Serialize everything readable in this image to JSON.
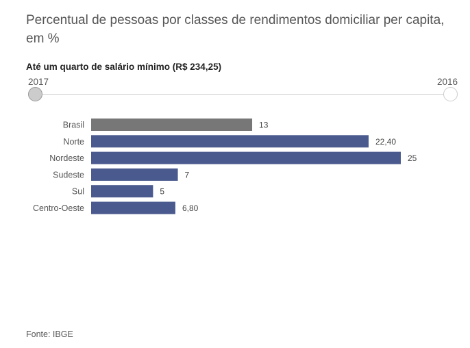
{
  "title": "Percentual de pessoas por classes de rendimentos domiciliar per capita, em %",
  "slider": {
    "subtitle": "Até um quarto de salário mínimo (R$ 234,25)",
    "left_label": "2017",
    "right_label": "2016",
    "selected": "2017"
  },
  "colors": {
    "brasil": "#777777",
    "regions": "#4a5a8e"
  },
  "chart_data": {
    "type": "bar",
    "orientation": "horizontal",
    "categories": [
      "Brasil",
      "Norte",
      "Nordeste",
      "Sudeste",
      "Sul",
      "Centro-Oeste"
    ],
    "values": [
      13,
      22.4,
      25,
      7,
      5,
      6.8
    ],
    "value_labels": [
      "13",
      "22,40",
      "25",
      "7",
      "5",
      "6,80"
    ],
    "xlim": [
      0,
      25
    ]
  },
  "source": "Fonte: IBGE"
}
